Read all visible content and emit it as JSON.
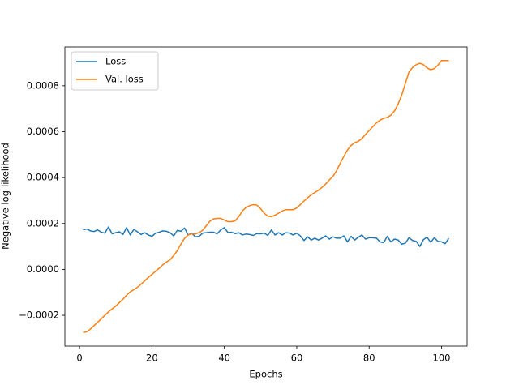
{
  "chart_data": {
    "type": "line",
    "xlabel": "Epochs",
    "ylabel": "Negative log-likelihood",
    "x": [
      1,
      2,
      3,
      4,
      5,
      6,
      7,
      8,
      9,
      10,
      11,
      12,
      13,
      14,
      15,
      16,
      17,
      18,
      19,
      20,
      21,
      22,
      23,
      24,
      25,
      26,
      27,
      28,
      29,
      30,
      31,
      32,
      33,
      34,
      35,
      36,
      37,
      38,
      39,
      40,
      41,
      42,
      43,
      44,
      45,
      46,
      47,
      48,
      49,
      50,
      51,
      52,
      53,
      54,
      55,
      56,
      57,
      58,
      59,
      60,
      61,
      62,
      63,
      64,
      65,
      66,
      67,
      68,
      69,
      70,
      71,
      72,
      73,
      74,
      75,
      76,
      77,
      78,
      79,
      80,
      81,
      82,
      83,
      84,
      85,
      86,
      87,
      88,
      89,
      90,
      91,
      92,
      93,
      94,
      95,
      96,
      97,
      98,
      99,
      100,
      101,
      102
    ],
    "series": [
      {
        "name": "Loss",
        "color": "#1f77b4",
        "values": [
          0.000172,
          0.000176,
          0.000168,
          0.000165,
          0.000172,
          0.000162,
          0.000158,
          0.000185,
          0.000155,
          0.00016,
          0.000164,
          0.000152,
          0.000182,
          0.00015,
          0.000174,
          0.000164,
          0.000152,
          0.00016,
          0.00015,
          0.000144,
          0.000158,
          0.000162,
          0.000168,
          0.000166,
          0.00016,
          0.000146,
          0.00017,
          0.000166,
          0.00018,
          0.00015,
          0.000158,
          0.000142,
          0.000144,
          0.000158,
          0.00016,
          0.000162,
          0.000162,
          0.000155,
          0.000172,
          0.000182,
          0.00016,
          0.000162,
          0.000156,
          0.00016,
          0.00015,
          0.000154,
          0.000152,
          0.000148,
          0.000156,
          0.000155,
          0.000158,
          0.000148,
          0.000172,
          0.00015,
          0.00016,
          0.00015,
          0.00016,
          0.000158,
          0.00015,
          0.000158,
          0.000146,
          0.000126,
          0.000142,
          0.000128,
          0.000136,
          0.000128,
          0.000136,
          0.000146,
          0.000132,
          0.000142,
          0.000136,
          0.000136,
          0.000146,
          0.00012,
          0.000144,
          0.000128,
          0.00014,
          0.00015,
          0.000132,
          0.000138,
          0.000138,
          0.000136,
          0.00012,
          0.000116,
          0.000144,
          0.00012,
          0.000132,
          0.000128,
          0.00011,
          0.000114,
          0.000138,
          0.000126,
          0.000122,
          0.0001,
          0.00013,
          0.00014,
          0.000118,
          0.000138,
          0.000122,
          0.00012,
          0.000112,
          0.000136
        ]
      },
      {
        "name": "Val. loss",
        "color": "#ff7f0e",
        "values": [
          -0.000275,
          -0.000272,
          -0.00026,
          -0.000245,
          -0.00023,
          -0.000215,
          -0.0002,
          -0.000185,
          -0.000172,
          -0.00016,
          -0.000145,
          -0.00013,
          -0.000112,
          -9.8e-05,
          -8.8e-05,
          -7.8e-05,
          -6.4e-05,
          -5e-05,
          -3.5e-05,
          -2.2e-05,
          -8e-06,
          5e-06,
          2e-05,
          3.2e-05,
          4.2e-05,
          6e-05,
          8.2e-05,
          0.00011,
          0.000135,
          0.00015,
          0.000155,
          0.000155,
          0.00016,
          0.00017,
          0.00019,
          0.00021,
          0.00022,
          0.000222,
          0.000222,
          0.000215,
          0.000208,
          0.000208,
          0.000212,
          0.00023,
          0.000255,
          0.00027,
          0.000278,
          0.000282,
          0.00028,
          0.000265,
          0.000245,
          0.000232,
          0.00023,
          0.000236,
          0.000245,
          0.000255,
          0.00026,
          0.00026,
          0.00026,
          0.000268,
          0.000282,
          0.000298,
          0.000312,
          0.000325,
          0.000335,
          0.000345,
          0.000358,
          0.000372,
          0.00039,
          0.000405,
          0.00043,
          0.000462,
          0.000492,
          0.00052,
          0.00054,
          0.000552,
          0.000558,
          0.00057,
          0.000588,
          0.000605,
          0.000622,
          0.000638,
          0.00065,
          0.000658,
          0.000662,
          0.000672,
          0.00069,
          0.00072,
          0.00076,
          0.00081,
          0.00086,
          0.00088,
          0.000892,
          0.000898,
          0.000892,
          0.000878,
          0.00087,
          0.000875,
          0.00089,
          0.00091,
          0.00091,
          0.00091
        ]
      }
    ],
    "xlim": [
      -4.05,
      107.05
    ],
    "ylim": [
      -0.000334,
      0.000969
    ],
    "xticks": [
      0,
      20,
      40,
      60,
      80,
      100
    ],
    "yticks": [
      {
        "value": -0.0002,
        "label": "−0.0002"
      },
      {
        "value": 0,
        "label": "0.0000"
      },
      {
        "value": 0.0002,
        "label": "0.0002"
      },
      {
        "value": 0.0004,
        "label": "0.0004"
      },
      {
        "value": 0.0006,
        "label": "0.0006"
      },
      {
        "value": 0.0008,
        "label": "0.0008"
      }
    ],
    "legend": "upper left"
  }
}
